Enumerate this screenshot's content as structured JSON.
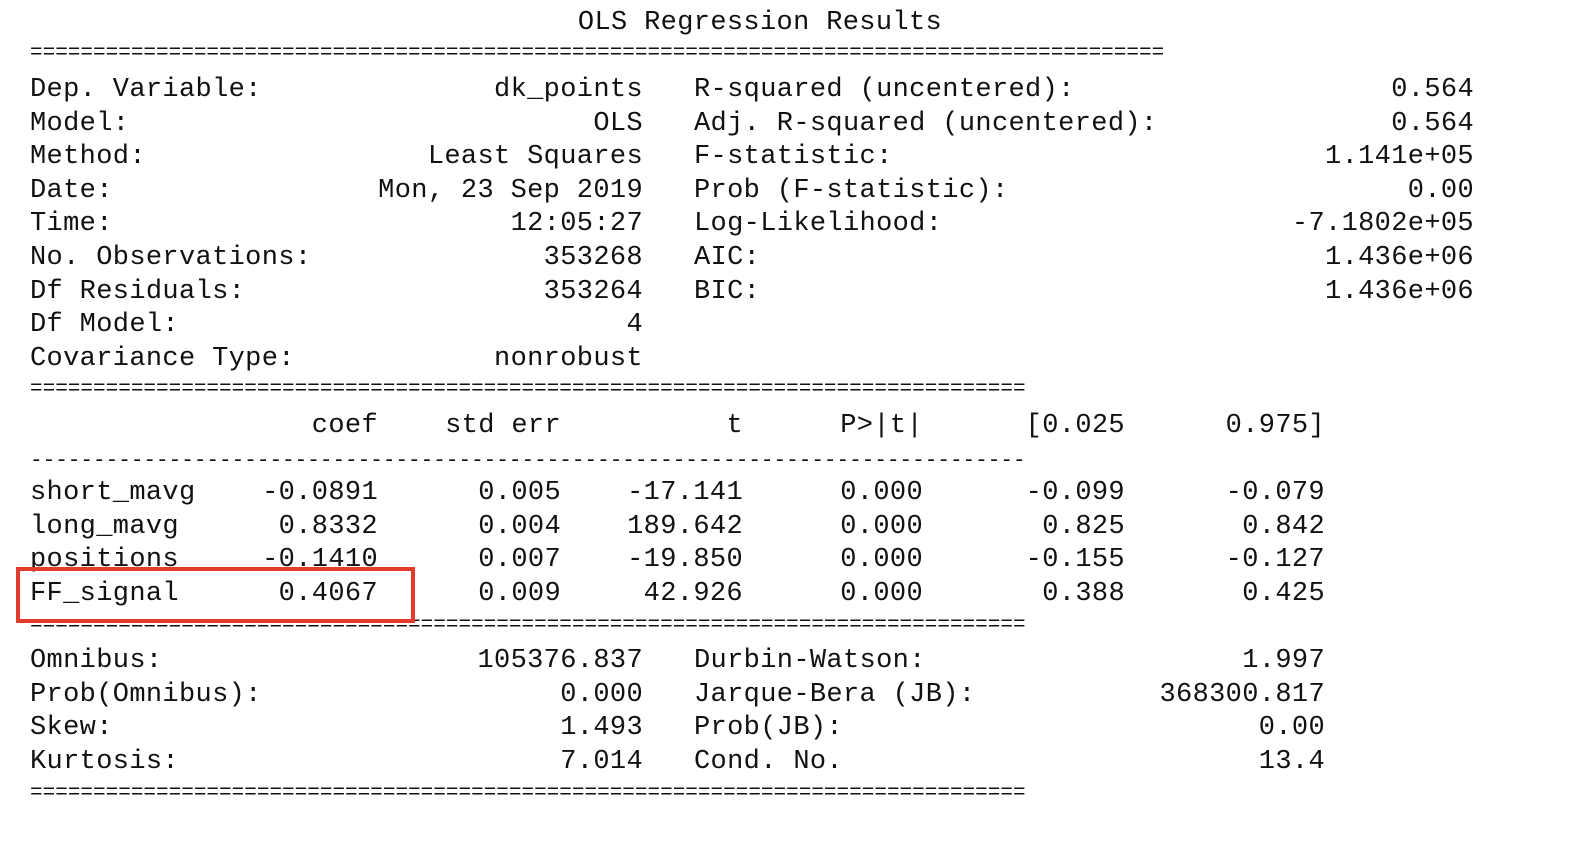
{
  "title": "OLS Regression Results",
  "top_rule": "==========================================================================================",
  "header_rows": [
    {
      "l_label": "Dep. Variable:",
      "l_value": "dk_points",
      "r_label": "R-squared (uncentered):",
      "r_value": "0.564"
    },
    {
      "l_label": "Model:",
      "l_value": "OLS",
      "r_label": "Adj. R-squared (uncentered):",
      "r_value": "0.564"
    },
    {
      "l_label": "Method:",
      "l_value": "Least Squares",
      "r_label": "F-statistic:",
      "r_value": "1.141e+05"
    },
    {
      "l_label": "Date:",
      "l_value": "Mon, 23 Sep 2019",
      "r_label": "Prob (F-statistic):",
      "r_value": "0.00"
    },
    {
      "l_label": "Time:",
      "l_value": "12:05:27",
      "r_label": "Log-Likelihood:",
      "r_value": "-7.1802e+05"
    },
    {
      "l_label": "No. Observations:",
      "l_value": "353268",
      "r_label": "AIC:",
      "r_value": "1.436e+06"
    },
    {
      "l_label": "Df Residuals:",
      "l_value": "353264",
      "r_label": "BIC:",
      "r_value": "1.436e+06"
    },
    {
      "l_label": "Df Model:",
      "l_value": "4",
      "r_label": "",
      "r_value": ""
    },
    {
      "l_label": "Covariance Type:",
      "l_value": "nonrobust",
      "r_label": "",
      "r_value": ""
    }
  ],
  "mid_rule": "===============================================================================",
  "coef_headers": [
    "coef",
    "std err",
    "t",
    "P>|t|",
    "[0.025",
    "0.975]"
  ],
  "dash_rule": "-------------------------------------------------------------------------------",
  "coef_rows": [
    {
      "name": "short_mavg",
      "values": [
        "-0.0891",
        "0.005",
        "-17.141",
        "0.000",
        "-0.099",
        "-0.079"
      ]
    },
    {
      "name": "long_mavg",
      "values": [
        "0.8332",
        "0.004",
        "189.642",
        "0.000",
        "0.825",
        "0.842"
      ]
    },
    {
      "name": "positions",
      "values": [
        "-0.1410",
        "0.007",
        "-19.850",
        "0.000",
        "-0.155",
        "-0.127"
      ]
    },
    {
      "name": "FF_signal",
      "values": [
        "0.4067",
        "0.009",
        "42.926",
        "0.000",
        "0.388",
        "0.425"
      ]
    }
  ],
  "bottom_rule_1": "===============================================================================",
  "diag_rows": [
    {
      "l_label": "Omnibus:",
      "l_value": "105376.837",
      "r_label": "Durbin-Watson:",
      "r_value": "1.997"
    },
    {
      "l_label": "Prob(Omnibus):",
      "l_value": "0.000",
      "r_label": "Jarque-Bera (JB):",
      "r_value": "368300.817"
    },
    {
      "l_label": "Skew:",
      "l_value": "1.493",
      "r_label": "Prob(JB):",
      "r_value": "0.00"
    },
    {
      "l_label": "Kurtosis:",
      "l_value": "7.014",
      "r_label": "Cond. No.",
      "r_value": "13.4"
    }
  ],
  "bottom_rule_2": "===============================================================================",
  "highlight_color": "#e23b2a"
}
